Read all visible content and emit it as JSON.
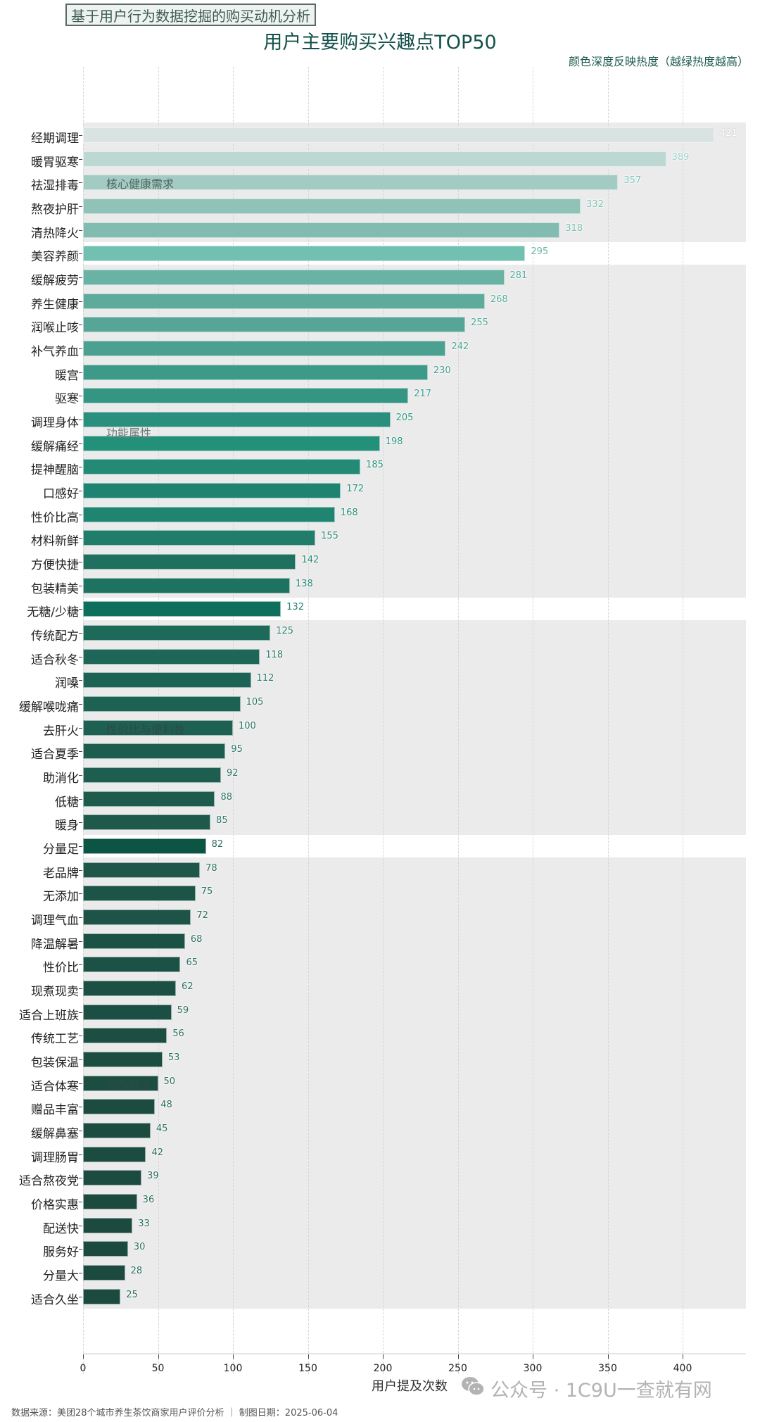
{
  "header": {
    "subtitle_box": "基于用户行为数据挖掘的购买动机分析",
    "title": "用户主要购买兴趣点TOP50",
    "note": "颜色深度反映热度（越绿热度越高）"
  },
  "axis": {
    "xlabel": "用户提及次数",
    "ticks": [
      "0",
      "50",
      "100",
      "150",
      "200",
      "250",
      "300",
      "350",
      "400"
    ]
  },
  "groups": [
    {
      "label": "核心健康需求",
      "start": 0,
      "end": 4,
      "label_color": "#4d6660"
    },
    {
      "label": "功能属性",
      "start": 6,
      "end": 19,
      "label_color": "#6a7a76"
    },
    {
      "label": "性价比与便利性",
      "start": 21,
      "end": 29,
      "label_color": "#2d4a44"
    },
    {
      "label": "产品特点",
      "start": 31,
      "end": 49,
      "label_color": "#2d4a44"
    }
  ],
  "footer": {
    "source": "数据来源：美团28个城市养生茶饮商家用户评价分析 ｜ 制图日期：2025-06-04",
    "watermark": "公众号 · 1C9U一查就有网"
  },
  "chart_data": {
    "type": "bar",
    "orientation": "horizontal",
    "title": "用户主要购买兴趣点TOP50",
    "subtitle": "基于用户行为数据挖掘的购买动机分析",
    "annotation": "颜色深度反映热度（越绿热度越高）",
    "xlabel": "用户提及次数",
    "ylabel": "",
    "xlim": [
      0,
      440
    ],
    "xticks": [
      0,
      50,
      100,
      150,
      200,
      250,
      300,
      350,
      400
    ],
    "grid": "vertical dashed",
    "categories": [
      "经期调理",
      "暖胃驱寒",
      "祛湿排毒",
      "熬夜护肝",
      "清热降火",
      "美容养颜",
      "缓解疲劳",
      "养生健康",
      "润喉止咳",
      "补气养血",
      "暖宫",
      "驱寒",
      "调理身体",
      "缓解痛经",
      "提神醒脑",
      "口感好",
      "性价比高",
      "材料新鲜",
      "方便快捷",
      "包装精美",
      "无糖/少糖",
      "传统配方",
      "适合秋冬",
      "润嗓",
      "缓解喉咙痛",
      "去肝火",
      "适合夏季",
      "助消化",
      "低糖",
      "暖身",
      "分量足",
      "老品牌",
      "无添加",
      "调理气血",
      "降温解暑",
      "性价比",
      "现煮现卖",
      "适合上班族",
      "传统工艺",
      "包装保温",
      "适合体寒",
      "赠品丰富",
      "缓解鼻塞",
      "调理肠胃",
      "适合熬夜党",
      "价格实惠",
      "配送快",
      "服务好",
      "分量大",
      "适合久坐"
    ],
    "values": [
      421,
      389,
      357,
      332,
      318,
      295,
      281,
      268,
      255,
      242,
      230,
      217,
      205,
      198,
      185,
      172,
      168,
      155,
      142,
      138,
      132,
      125,
      118,
      112,
      105,
      100,
      95,
      92,
      88,
      85,
      82,
      78,
      75,
      72,
      68,
      65,
      62,
      59,
      56,
      53,
      50,
      48,
      45,
      42,
      39,
      36,
      33,
      30,
      28,
      25
    ],
    "group_annotations": [
      "核心健康需求",
      "功能属性",
      "性价比与便利性",
      "产品特点"
    ]
  },
  "colors": {
    "bars": [
      "#d9e3e1",
      "#bdd7d2",
      "#a3cbc3",
      "#91c2b8",
      "#82bbb0",
      "#72c0b0",
      "#69b2a4",
      "#5eaa9b",
      "#56a596",
      "#4ba08f",
      "#3e9a88",
      "#349583",
      "#2a8f7c",
      "#239079",
      "#238a76",
      "#1f8371",
      "#1f8571",
      "#1f7d69",
      "#20705f",
      "#1e7360",
      "#0e705c",
      "#1d6a5b",
      "#1e6657",
      "#1d6355",
      "#1d6253",
      "#1e6051",
      "#1d5d4f",
      "#1e5e50",
      "#1d5b4d",
      "#1e594c",
      "#0c5545",
      "#1e564a",
      "#1c5447",
      "#1e5448",
      "#1c5245",
      "#1c5145",
      "#1c5044",
      "#1c4f43",
      "#1c4e42",
      "#1c4d41",
      "#1c4d41",
      "#1c4c40",
      "#1c4c40",
      "#1c4b40",
      "#1c4b40",
      "#1c4a3f",
      "#1c4a3f",
      "#1c4a3f",
      "#1c4a3f",
      "#1c4a3f"
    ],
    "values": [
      "#ffffff",
      "#9cd1c5",
      "#7fc9ba",
      "#7fc4b6",
      "#79bdaf",
      "#6db6a8",
      "#58ad9e",
      "#58ad9e",
      "#4fa796",
      "#4fa796",
      "#3fa08c",
      "#3fa08c",
      "#2e957f",
      "#2e957f",
      "#2a8f7a",
      "#2a8f7a",
      "#2a8f7a",
      "#2a8a76",
      "#2a8a76",
      "#2a8a76",
      "#2a8070",
      "#2a8070",
      "#2a7a6a",
      "#2a7a6a",
      "#2a7a6a",
      "#2a7466",
      "#2a7466",
      "#2a7466",
      "#2a7466",
      "#2a7466",
      "#2a6e60",
      "#2a6e60",
      "#2a6e60",
      "#2a6e60",
      "#2a6e60",
      "#2a6e60",
      "#2a6e60",
      "#2a6e60",
      "#2a6e60",
      "#2a6e60",
      "#2a6e60",
      "#2a6e60",
      "#2a6e60",
      "#2a6e60",
      "#2a6e60",
      "#2a6e60",
      "#2a6e60",
      "#2a6e60",
      "#2a6e60",
      "#2a6e60"
    ],
    "band": "#ebebeb",
    "title": "#13504a"
  }
}
